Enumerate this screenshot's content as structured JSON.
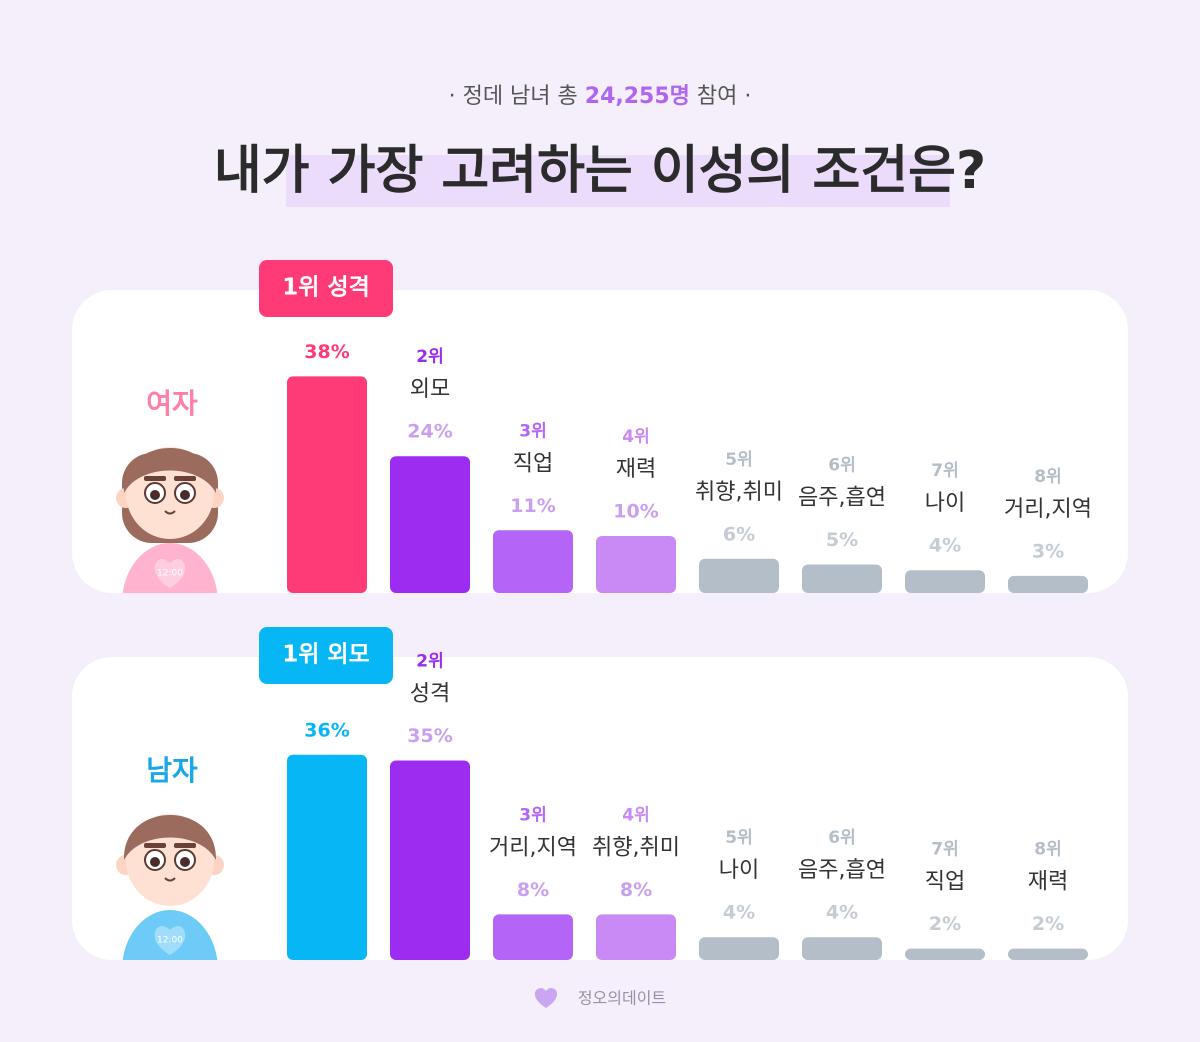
{
  "header": {
    "subtitle_start": "· 정데 남녀 총",
    "subtitle_highlight": "24,255명",
    "subtitle_end": "참여 ·",
    "title": "내가 가장 고려하는 이성의 조건은?"
  },
  "chart_data": [
    {
      "type": "bar",
      "title": "여자",
      "title_color": "#ff7fa6",
      "badge": "1위 성격",
      "badge_color": "#ff3b77",
      "icon_label": "12:00",
      "ranks": [
        null,
        "2위",
        "3위",
        "4위",
        "5위",
        "6위",
        "7위",
        "8위"
      ],
      "categories": [
        null,
        "외모",
        "직업",
        "재력",
        "취향,취미",
        "음주,흡연",
        "나이",
        "거리,지역"
      ],
      "values": [
        38,
        24,
        11,
        10,
        6,
        5,
        4,
        3
      ],
      "value_labels": [
        "38%",
        "24%",
        "11%",
        "10%",
        "6%",
        "5%",
        "4%",
        "3%"
      ],
      "colors": [
        "#ff3b77",
        "#9b2cf0",
        "#b464f7",
        "#c98af5",
        "#b4bec8",
        "#b4bec8",
        "#b4bec8",
        "#b4bec8"
      ],
      "label_colors": [
        "#ff3b77",
        "#c9a0f0",
        "#c9a0f0",
        "#c9a0f0",
        "#c5ccd3",
        "#c5ccd3",
        "#c5ccd3",
        "#c5ccd3"
      ],
      "rank_colors": [
        null,
        "#9b2cf0",
        "#b464f7",
        "#c98af5",
        "#b4bec8",
        "#b4bec8",
        "#b4bec8",
        "#b4bec8"
      ]
    },
    {
      "type": "bar",
      "title": "남자",
      "title_color": "#1aa6e8",
      "badge": "1위 외모",
      "badge_color": "#06b6f5",
      "icon_label": "12:00",
      "ranks": [
        null,
        "2위",
        "3위",
        "4위",
        "5위",
        "6위",
        "7위",
        "8위"
      ],
      "categories": [
        null,
        "성격",
        "거리,지역",
        "취향,취미",
        "나이",
        "음주,흡연",
        "직업",
        "재력"
      ],
      "values": [
        36,
        35,
        8,
        8,
        4,
        4,
        2,
        2
      ],
      "value_labels": [
        "36%",
        "35%",
        "8%",
        "8%",
        "4%",
        "4%",
        "2%",
        "2%"
      ],
      "colors": [
        "#06b6f5",
        "#9b2cf0",
        "#b464f7",
        "#c98af5",
        "#b4bec8",
        "#b4bec8",
        "#b4bec8",
        "#b4bec8"
      ],
      "label_colors": [
        "#06b6f5",
        "#c9a0f0",
        "#c9a0f0",
        "#c9a0f0",
        "#c5ccd3",
        "#c5ccd3",
        "#c5ccd3",
        "#c5ccd3"
      ],
      "rank_colors": [
        null,
        "#9b2cf0",
        "#b464f7",
        "#c98af5",
        "#b4bec8",
        "#b4bec8",
        "#b4bec8",
        "#b4bec8"
      ]
    }
  ],
  "footer": "정오의데이트"
}
